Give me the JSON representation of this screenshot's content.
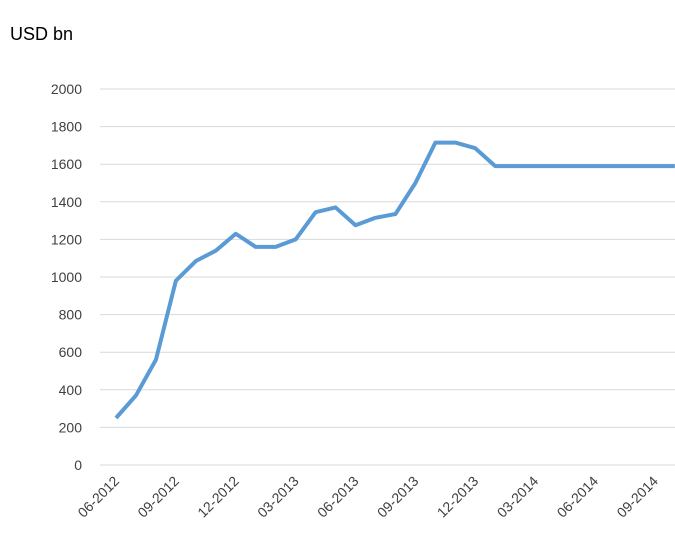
{
  "chart_data": {
    "type": "line",
    "title": "USD bn",
    "categories": [
      "06-2012",
      null,
      null,
      "09-2012",
      null,
      null,
      "12-2012",
      null,
      null,
      "03-2013",
      null,
      null,
      "06-2013",
      null,
      null,
      "09-2013",
      null,
      null,
      "12-2013",
      null,
      null,
      "03-2014",
      null,
      null,
      "06-2014",
      null,
      null,
      "09-2014",
      null
    ],
    "series": [
      {
        "name": "USD bn",
        "color": "#5b9bd5",
        "values": [
          250,
          370,
          560,
          980,
          1085,
          1140,
          1230,
          1160,
          1160,
          1200,
          1345,
          1370,
          1275,
          1315,
          1335,
          1500,
          1715,
          1715,
          1685,
          1590,
          1590,
          1590,
          1590,
          1590,
          1590,
          1590,
          1590,
          1590,
          1590
        ]
      }
    ],
    "ylim": [
      0,
      2000
    ],
    "yticks": [
      0,
      200,
      400,
      600,
      800,
      1000,
      1200,
      1400,
      1600,
      1800,
      2000
    ],
    "grid": true
  }
}
